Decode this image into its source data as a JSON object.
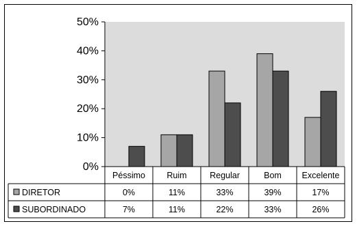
{
  "chart_data": {
    "type": "bar",
    "categories": [
      "Péssimo",
      "Ruim",
      "Regular",
      "Bom",
      "Excelente"
    ],
    "series": [
      {
        "name": "DIRETOR",
        "values": [
          0,
          11,
          33,
          39,
          17
        ],
        "color": "#a6a6a6",
        "labels": [
          "0%",
          "11%",
          "33%",
          "39%",
          "17%"
        ]
      },
      {
        "name": "SUBORDINADO",
        "values": [
          7,
          11,
          22,
          33,
          26
        ],
        "color": "#4d4d4d",
        "labels": [
          "7%",
          "11%",
          "22%",
          "33%",
          "26%"
        ]
      }
    ],
    "y_ticks": [
      "0%",
      "10%",
      "20%",
      "30%",
      "40%",
      "50%"
    ],
    "ylim": [
      0,
      50
    ],
    "plot_background": "#dcdcdc",
    "legend": "data table below chart"
  }
}
